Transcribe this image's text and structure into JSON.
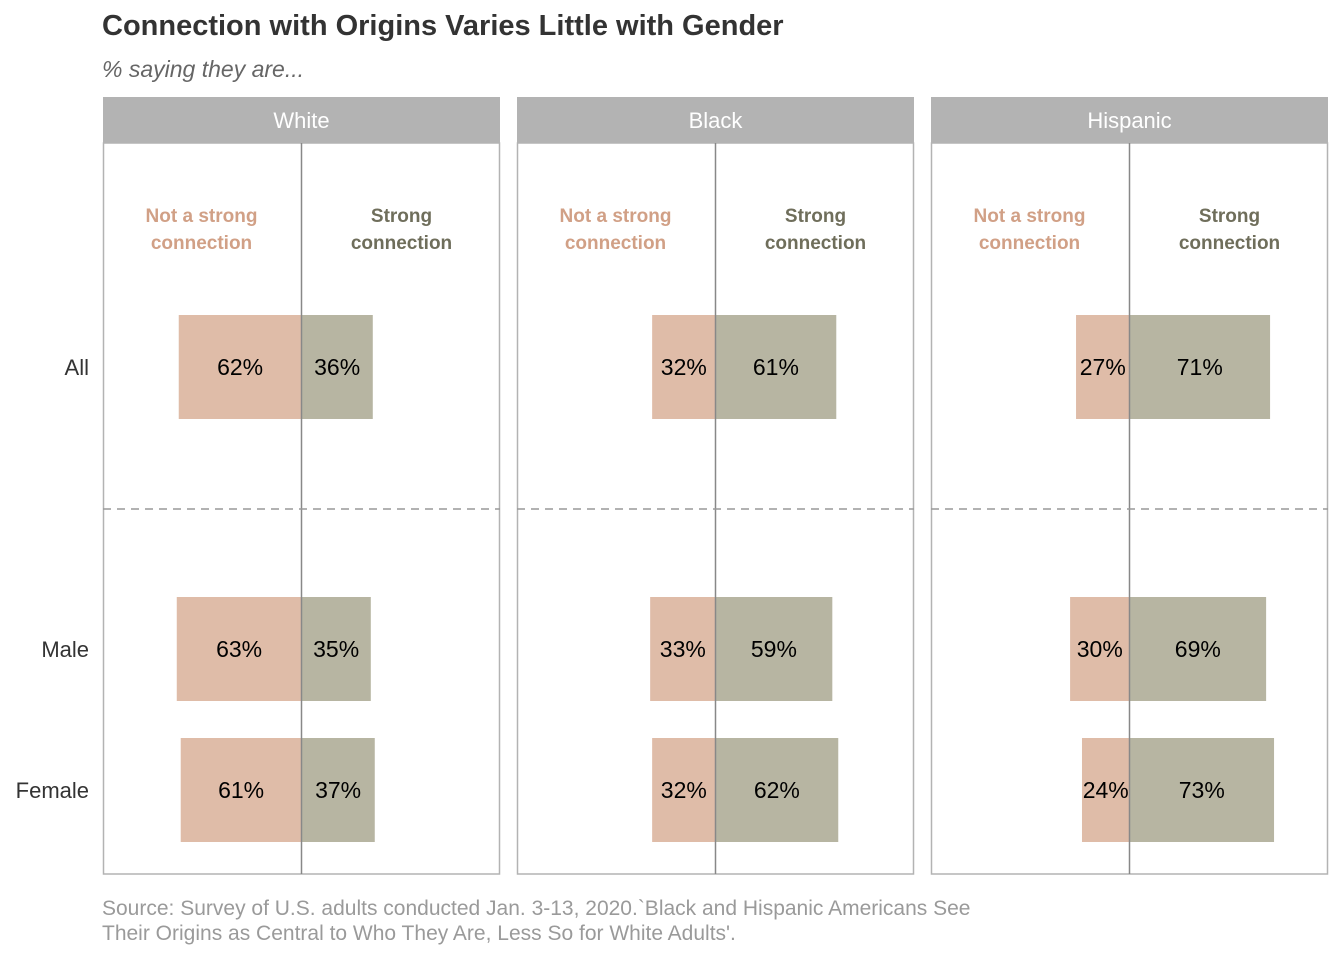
{
  "title": "Connection with Origins Varies Little with Gender",
  "subtitle": "% saying they are...",
  "source": [
    "Source: Survey of U.S. adults conducted Jan. 3-13, 2020.`Black and Hispanic Americans See",
    "Their Origins as Central to Who They Are, Less So for White Adults'."
  ],
  "colors": {
    "not_strong": "#dfbca8",
    "strong": "#b7b5a2",
    "not_strong_text": "#d1a086",
    "strong_text": "#6f6e5b",
    "strip": "#b3b3b3",
    "panel_border": "#b3b3b3",
    "axis": "#888888",
    "divider": "#999999"
  },
  "chart_data": {
    "type": "bar",
    "orientation": "horizontal-diverging",
    "categories": [
      "All",
      "Male",
      "Female"
    ],
    "group_divider_after": "All",
    "column_headers": {
      "not_strong": [
        "Not a strong",
        "connection"
      ],
      "strong": [
        "Strong",
        "connection"
      ]
    },
    "panels": [
      {
        "name": "White",
        "series": [
          {
            "name": "Not a strong connection",
            "values": [
              62,
              63,
              61
            ]
          },
          {
            "name": "Strong connection",
            "values": [
              36,
              35,
              37
            ]
          }
        ]
      },
      {
        "name": "Black",
        "series": [
          {
            "name": "Not a strong connection",
            "values": [
              32,
              33,
              32
            ]
          },
          {
            "name": "Strong connection",
            "values": [
              61,
              59,
              62
            ]
          }
        ]
      },
      {
        "name": "Hispanic",
        "series": [
          {
            "name": "Not a strong connection",
            "values": [
              27,
              30,
              24
            ]
          },
          {
            "name": "Strong connection",
            "values": [
              71,
              69,
              73
            ]
          }
        ]
      }
    ],
    "value_suffix": "%",
    "xlim": [
      -100,
      100
    ],
    "grid": false,
    "legend": "none"
  }
}
